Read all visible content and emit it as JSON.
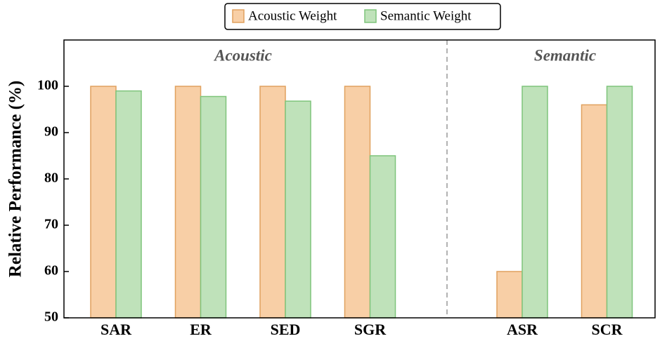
{
  "chart_data": {
    "type": "bar",
    "y_label": "Relative Performance (%)",
    "annotations": [
      "Acoustic",
      "Semantic"
    ],
    "categories": [
      "SAR",
      "ER",
      "SED",
      "SGR",
      "ASR",
      "SCR"
    ],
    "series": [
      {
        "name": "Acoustic Weight",
        "color": "#f8cfa6",
        "edge": "#e0a15f",
        "values": [
          100,
          100,
          100,
          100,
          60,
          96
        ]
      },
      {
        "name": "Semantic Weight",
        "color": "#bfe2ba",
        "edge": "#7ec47b",
        "values": [
          99,
          97.8,
          96.8,
          85,
          100,
          100
        ]
      }
    ],
    "ylim": [
      50,
      110
    ],
    "yticks": [
      50,
      60,
      70,
      80,
      90,
      100
    ],
    "legend": "top"
  }
}
